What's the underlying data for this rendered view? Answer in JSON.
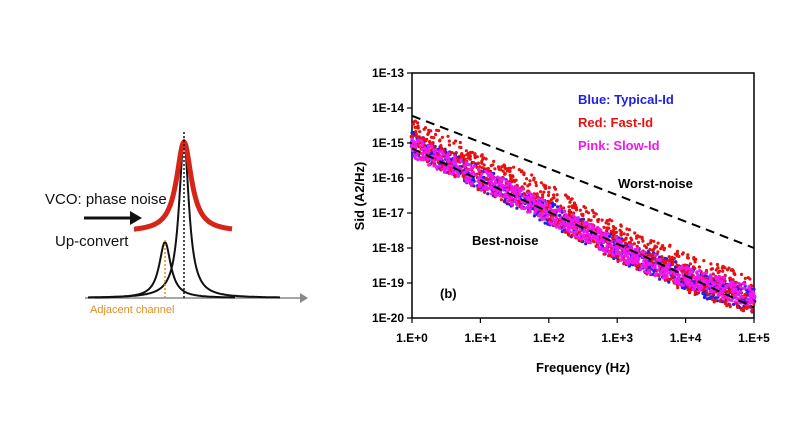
{
  "left_diagram": {
    "vco_label": "VCO: phase noise",
    "upconvert_label": "Up‐convert",
    "adjacent_label": "Adjacent channel",
    "colors": {
      "phase_noise": "#d62418",
      "curve": "#111111",
      "adjacent": "#e09020"
    }
  },
  "chart_data": {
    "type": "scatter",
    "title": "",
    "xlabel": "Frequency (Hz)",
    "ylabel": "Sid (A2/Hz)",
    "x_scale": "log",
    "y_scale": "log",
    "xlim": [
      1,
      100000
    ],
    "ylim": [
      1e-20,
      1e-13
    ],
    "x_ticks": [
      {
        "value": 1,
        "label": "1.E+0"
      },
      {
        "value": 10,
        "label": "1.E+1"
      },
      {
        "value": 100,
        "label": "1.E+2"
      },
      {
        "value": 1000,
        "label": "1.E+3"
      },
      {
        "value": 10000,
        "label": "1.E+4"
      },
      {
        "value": 100000,
        "label": "1.E+5"
      }
    ],
    "y_ticks": [
      {
        "value": 1e-13,
        "label": "1E-13"
      },
      {
        "value": 1e-14,
        "label": "1E-14"
      },
      {
        "value": 1e-15,
        "label": "1E-15"
      },
      {
        "value": 1e-16,
        "label": "1E-16"
      },
      {
        "value": 1e-17,
        "label": "1E-17"
      },
      {
        "value": 1e-18,
        "label": "1E-18"
      },
      {
        "value": 1e-19,
        "label": "1E-19"
      },
      {
        "value": 1e-20,
        "label": "1E-20"
      }
    ],
    "grid": false,
    "legend_position": "top-right",
    "series": [
      {
        "name": "Blue: Typical-Id",
        "color": "#1f1fe6",
        "x": [
          1,
          2,
          5,
          10,
          20,
          50,
          100,
          200,
          500,
          1000,
          2000,
          5000,
          10000,
          20000,
          50000,
          100000
        ],
        "y": [
          1e-15,
          5e-16,
          2e-16,
          1e-16,
          5e-17,
          2e-17,
          1e-17,
          5e-18,
          2e-18,
          1e-18,
          5e-19,
          2.5e-19,
          1.5e-19,
          8e-20,
          5e-20,
          3e-20
        ]
      },
      {
        "name": "Red: Fast-Id",
        "color": "#e81010",
        "x": [
          1,
          2,
          5,
          10,
          20,
          50,
          100,
          200,
          500,
          1000,
          2000,
          5000,
          10000,
          20000,
          50000,
          100000
        ],
        "y": [
          1.5e-15,
          8e-16,
          3e-16,
          1.5e-16,
          8e-17,
          4e-17,
          2e-17,
          8e-18,
          3e-18,
          1.5e-18,
          8e-19,
          4e-19,
          2e-19,
          1.2e-19,
          7e-20,
          4e-20
        ]
      },
      {
        "name": "Pink: Slow-Id",
        "color": "#f018f0",
        "x": [
          1,
          2,
          5,
          10,
          20,
          50,
          100,
          200,
          500,
          1000,
          2000,
          5000,
          10000,
          20000,
          50000,
          100000
        ],
        "y": [
          8e-16,
          4e-16,
          1.8e-16,
          9e-17,
          5e-17,
          2e-17,
          1e-17,
          5e-18,
          2e-18,
          1e-18,
          5e-19,
          2.5e-19,
          1.5e-19,
          1e-19,
          6e-20,
          4e-20
        ]
      }
    ],
    "bounds": [
      {
        "name": "Worst-noise",
        "x": [
          1,
          100000
        ],
        "y": [
          6e-15,
          1e-18
        ]
      },
      {
        "name": "Best-noise",
        "x": [
          1,
          100000
        ],
        "y": [
          7e-16,
          2e-20
        ]
      }
    ],
    "annotations": [
      "Worst-noise",
      "Best-noise",
      "(b)"
    ]
  }
}
